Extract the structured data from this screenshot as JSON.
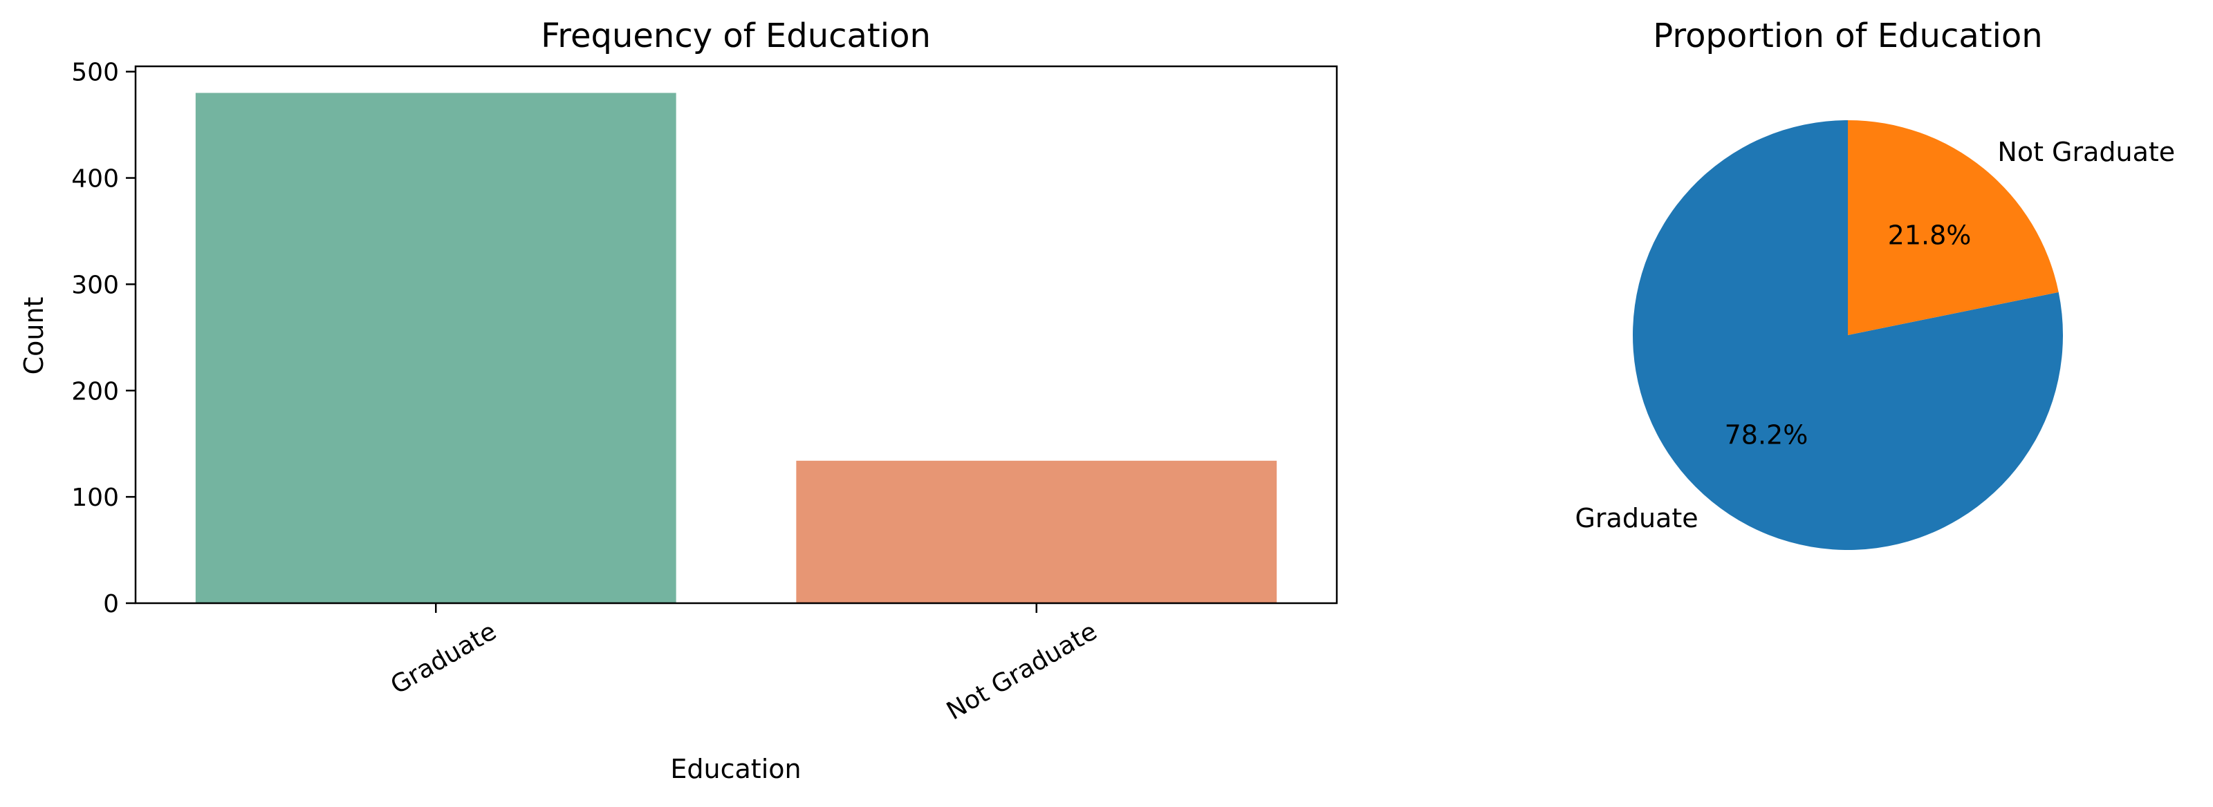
{
  "chart_data": [
    {
      "type": "bar",
      "title": "Frequency of Education",
      "xlabel": "Education",
      "ylabel": "Count",
      "categories": [
        "Graduate",
        "Not Graduate"
      ],
      "values": [
        480,
        134
      ],
      "ylim": [
        0,
        505
      ],
      "yticks": [
        0,
        100,
        200,
        300,
        400,
        500
      ],
      "colors": [
        "#74b4a0",
        "#e79674"
      ],
      "grid": false,
      "legend": "none"
    },
    {
      "type": "pie",
      "title": "Proportion of Education",
      "labels": [
        "Graduate",
        "Not Graduate"
      ],
      "values": [
        78.2,
        21.8
      ],
      "value_labels": [
        "78.2%",
        "21.8%"
      ],
      "colors": [
        "#1f77b4",
        "#ff7f0e"
      ],
      "legend": "none"
    }
  ]
}
